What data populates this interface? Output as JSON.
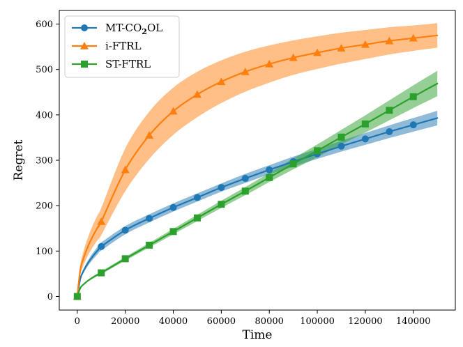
{
  "chart_data": {
    "type": "line",
    "title": "",
    "xlabel": "Time",
    "ylabel": "Regret",
    "xlim": [
      -7500,
      157500
    ],
    "ylim": [
      -30,
      630
    ],
    "xticks": [
      0,
      20000,
      40000,
      60000,
      80000,
      100000,
      120000,
      140000
    ],
    "xtick_labels": [
      "0",
      "20000",
      "40000",
      "60000",
      "80000",
      "100000",
      "120000",
      "140000"
    ],
    "yticks": [
      0,
      100,
      200,
      300,
      400,
      500,
      600
    ],
    "ytick_labels": [
      "0",
      "100",
      "200",
      "300",
      "400",
      "500",
      "600"
    ],
    "grid": false,
    "legend_position": "top-left",
    "series": [
      {
        "name": "MT-CO2OL",
        "legend_label": "MT-CO",
        "legend_sub": "2",
        "legend_suffix": "OL",
        "color": "#1f77b4",
        "marker": "circle",
        "x": [
          0,
          10000,
          20000,
          30000,
          40000,
          50000,
          60000,
          70000,
          80000,
          90000,
          100000,
          110000,
          120000,
          130000,
          140000,
          150000
        ],
        "y": [
          0,
          110,
          146,
          172,
          196,
          218,
          240,
          260,
          279,
          297,
          314,
          331,
          347,
          363,
          378,
          393
        ],
        "band_halfwidth": [
          0,
          9,
          9,
          9,
          9,
          9,
          9,
          10,
          10,
          11,
          11,
          12,
          13,
          14,
          15,
          16
        ],
        "marker_indices": [
          0,
          1,
          2,
          3,
          4,
          5,
          6,
          7,
          8,
          9,
          10,
          11,
          12,
          13,
          14
        ]
      },
      {
        "name": "i-FTRL",
        "legend_label": "i-FTRL",
        "color": "#ff7f0e",
        "marker": "triangle",
        "x": [
          0,
          10000,
          20000,
          30000,
          40000,
          50000,
          60000,
          70000,
          80000,
          90000,
          100000,
          110000,
          120000,
          130000,
          140000,
          150000
        ],
        "y": [
          0,
          165,
          279,
          355,
          408,
          445,
          473,
          495,
          512,
          526,
          537,
          547,
          555,
          563,
          569,
          575
        ],
        "band_halfwidth": [
          0,
          30,
          47,
          52,
          52,
          50,
          47,
          44,
          41,
          38,
          36,
          34,
          32,
          30,
          28,
          27
        ],
        "marker_indices": [
          0,
          1,
          2,
          3,
          4,
          5,
          6,
          7,
          8,
          9,
          10,
          11,
          12,
          13,
          14
        ]
      },
      {
        "name": "ST-FTRL",
        "legend_label": "ST-FTRL",
        "color": "#2ca02c",
        "marker": "square",
        "x": [
          0,
          10000,
          20000,
          30000,
          40000,
          50000,
          60000,
          70000,
          80000,
          90000,
          100000,
          110000,
          120000,
          130000,
          140000,
          150000
        ],
        "y": [
          0,
          52,
          83,
          113,
          143,
          173,
          203,
          232,
          262,
          292,
          321,
          351,
          380,
          410,
          440,
          469
        ],
        "band_halfwidth": [
          0,
          3,
          4,
          5,
          6,
          7,
          8,
          9,
          10,
          12,
          14,
          16,
          19,
          22,
          25,
          28
        ],
        "marker_indices": [
          0,
          1,
          2,
          3,
          4,
          5,
          6,
          7,
          8,
          9,
          10,
          11,
          12,
          13,
          14
        ]
      }
    ]
  }
}
